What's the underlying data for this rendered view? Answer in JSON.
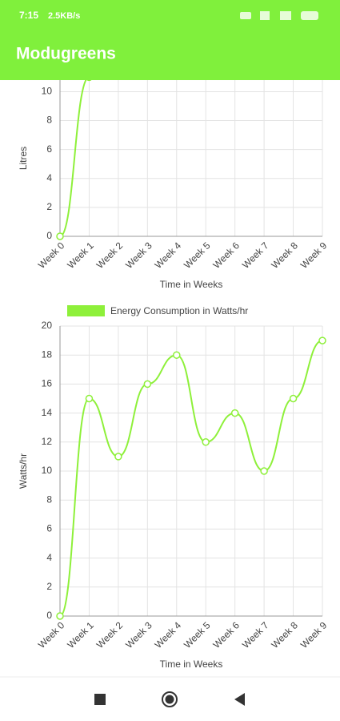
{
  "status_bar": {
    "time": "7:15",
    "speed": "2.5KB/s"
  },
  "app_bar": {
    "title": "Modugreens"
  },
  "chart_data": [
    {
      "type": "line",
      "y_label": "Litres",
      "x_label": "Time in Weeks",
      "categories": [
        "Week 0",
        "Week 1",
        "Week 2",
        "Week 3",
        "Week 4",
        "Week 5",
        "Week 6",
        "Week 7",
        "Week 8",
        "Week 9"
      ],
      "series": [
        {
          "color": "#8ef03a",
          "values": [
            0,
            11,
            null,
            null,
            null,
            null,
            null,
            null,
            null,
            null
          ]
        }
      ],
      "ylim": [
        0,
        10.8
      ],
      "yticks": [
        0,
        2,
        4,
        6,
        8,
        10
      ],
      "grid": true
    },
    {
      "type": "line",
      "y_label": "Watts/hr",
      "x_label": "Time in Weeks",
      "categories": [
        "Week 0",
        "Week 1",
        "Week 2",
        "Week 3",
        "Week 4",
        "Week 5",
        "Week 6",
        "Week 7",
        "Week 8",
        "Week 9"
      ],
      "series": [
        {
          "name": "Energy Consumption in Watts/hr",
          "color": "#8ef03a",
          "values": [
            0,
            15,
            11,
            16,
            18,
            12,
            14,
            10,
            15,
            19
          ]
        }
      ],
      "ylim": [
        0,
        20
      ],
      "yticks": [
        0,
        2,
        4,
        6,
        8,
        10,
        12,
        14,
        16,
        18,
        20
      ],
      "grid": true,
      "legend": "top"
    }
  ]
}
